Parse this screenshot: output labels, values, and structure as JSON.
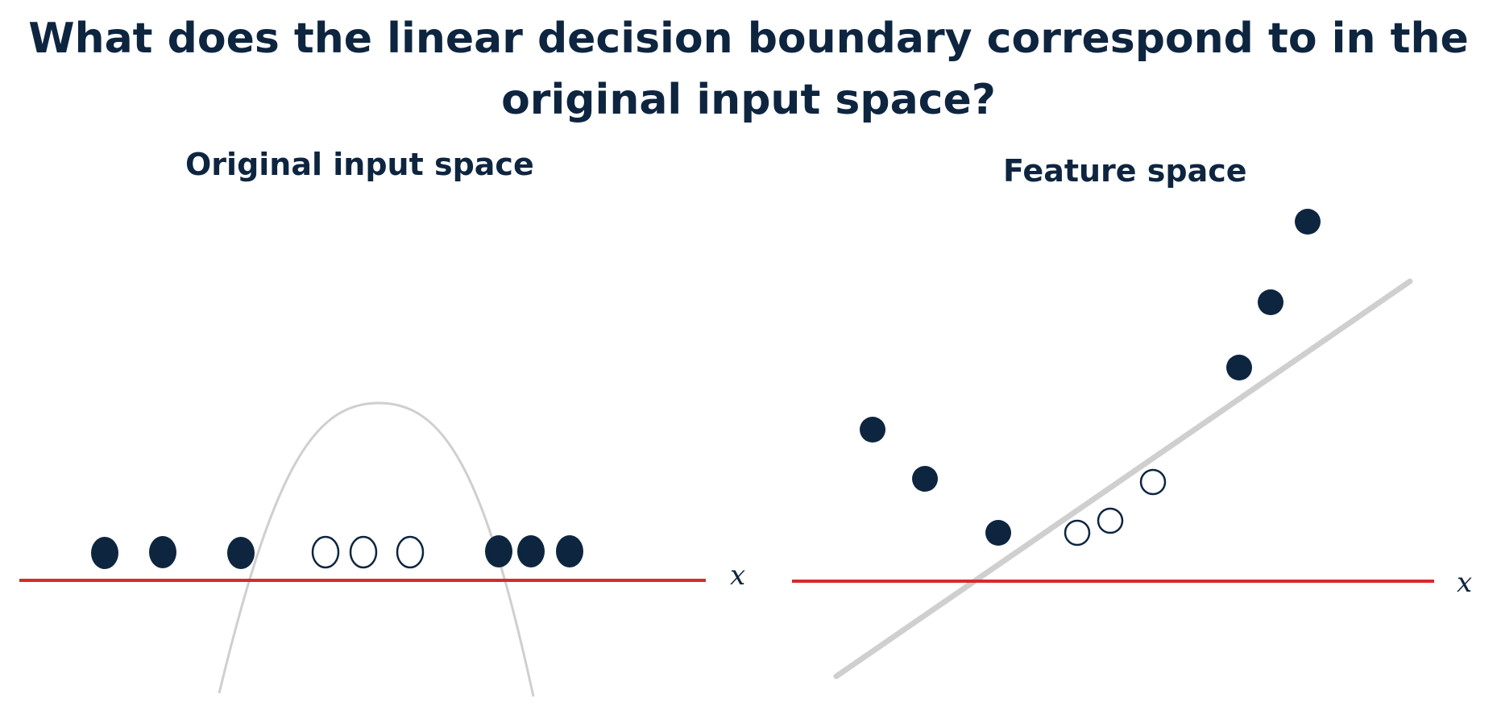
{
  "title": "What does the linear decision boundary correspond to in the original input space?",
  "panels": {
    "left": {
      "subtitle": "Original input space",
      "x_axis_label": "x",
      "points": [
        {
          "cls": "positive",
          "filled": true
        },
        {
          "cls": "positive",
          "filled": true
        },
        {
          "cls": "positive",
          "filled": true
        },
        {
          "cls": "negative",
          "filled": false
        },
        {
          "cls": "negative",
          "filled": false
        },
        {
          "cls": "negative",
          "filled": false
        },
        {
          "cls": "positive",
          "filled": true
        },
        {
          "cls": "positive",
          "filled": true
        },
        {
          "cls": "positive",
          "filled": true
        }
      ]
    },
    "right": {
      "subtitle": "Feature space",
      "x_axis_label": "x",
      "points": [
        {
          "cls": "positive",
          "filled": true
        },
        {
          "cls": "positive",
          "filled": true
        },
        {
          "cls": "positive",
          "filled": true
        },
        {
          "cls": "negative",
          "filled": false
        },
        {
          "cls": "negative",
          "filled": false
        },
        {
          "cls": "negative",
          "filled": false
        },
        {
          "cls": "positive",
          "filled": true
        },
        {
          "cls": "positive",
          "filled": true
        },
        {
          "cls": "positive",
          "filled": true
        }
      ]
    }
  },
  "colors": {
    "title": "#0e2540",
    "point_fill": "#0e2540",
    "axis": "#d62b2b",
    "boundary": "#cfcfcf"
  }
}
